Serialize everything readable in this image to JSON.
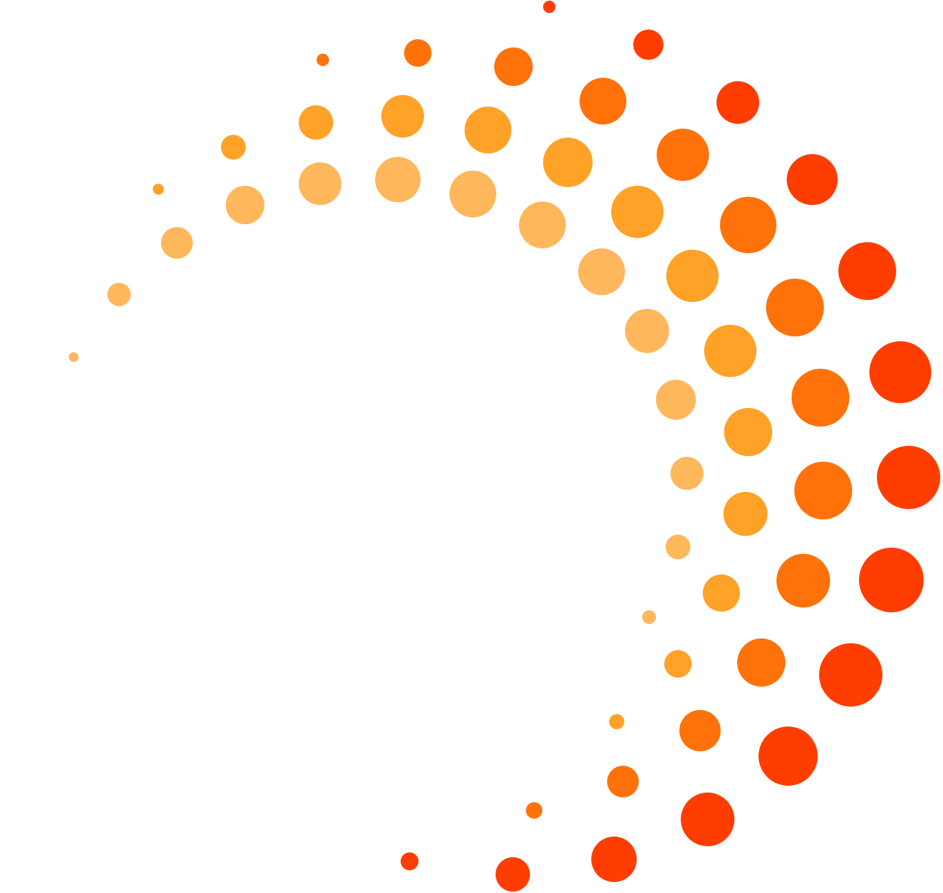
{
  "logo": {
    "icon": "dotted-arc-logo",
    "colors": {
      "red": "#FF3D00",
      "orange": "#FF720A",
      "amber": "#FFA227",
      "light": "#FFB75C",
      "background": "#FFFFFF"
    }
  }
}
